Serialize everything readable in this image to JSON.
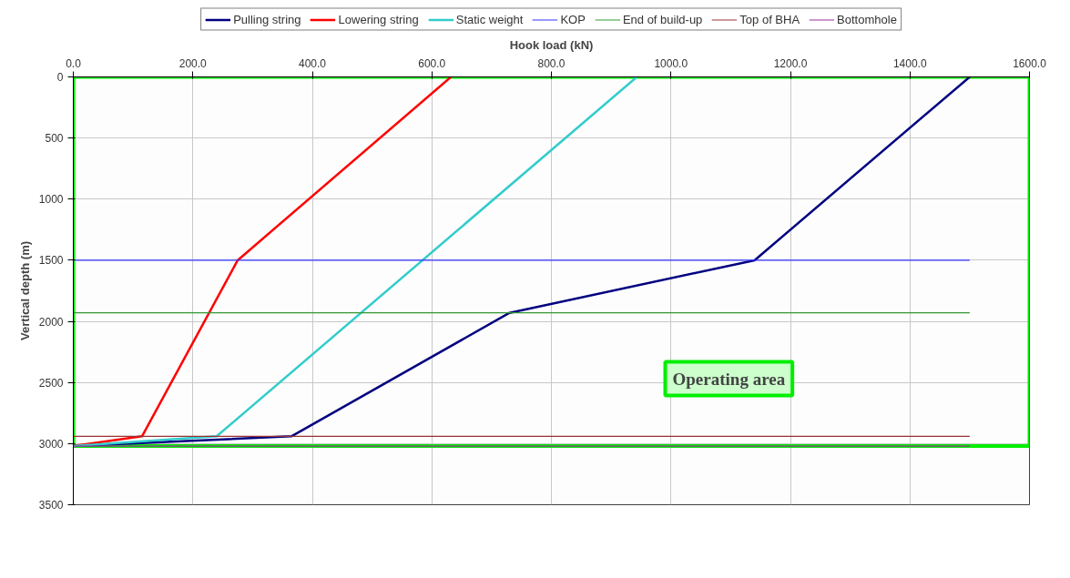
{
  "chart_data": {
    "type": "line",
    "xlabel": "Hook load (kN)",
    "ylabel": "Vertical depth (m)",
    "xlim": [
      0,
      1600
    ],
    "xticks": [
      {
        "value": 0,
        "label": "0.0"
      },
      {
        "value": 200,
        "label": "200.0"
      },
      {
        "value": 400,
        "label": "400.0"
      },
      {
        "value": 600,
        "label": "600.0"
      },
      {
        "value": 800,
        "label": "800.0"
      },
      {
        "value": 1000,
        "label": "1000.0"
      },
      {
        "value": 1200,
        "label": "1200.0"
      },
      {
        "value": 1400,
        "label": "1400.0"
      },
      {
        "value": 1600,
        "label": "1600.0"
      }
    ],
    "ylim": [
      3500,
      0
    ],
    "yticks": [
      0,
      500,
      1000,
      1500,
      2000,
      2500,
      3000,
      3500
    ],
    "series": [
      {
        "name": "Pulling string",
        "color": "#000080",
        "x": [
          1500,
          1140,
          730,
          365,
          0
        ],
        "values": [
          0,
          1500,
          1930,
          2940,
          3020
        ]
      },
      {
        "name": "Lowering string",
        "color": "#ff0000",
        "x": [
          632,
          275,
          115,
          0
        ],
        "values": [
          0,
          1500,
          2940,
          3020
        ]
      },
      {
        "name": "Static weight",
        "color": "#33cccc",
        "x": [
          943,
          240,
          0
        ],
        "values": [
          0,
          2940,
          3020
        ]
      }
    ],
    "ref_lines": [
      {
        "axis": "y",
        "value": 1500,
        "label": "KOP",
        "color": "#3333ff"
      },
      {
        "axis": "y",
        "value": 1930,
        "label": "End of build-up",
        "color": "#339933"
      },
      {
        "axis": "y",
        "value": 2940,
        "label": "Top of BHA",
        "color": "#993333"
      },
      {
        "axis": "y",
        "value": 3020,
        "label": "Bottomhole",
        "color": "#993399"
      }
    ],
    "annotations": [
      "Operating area"
    ],
    "grid": true,
    "legend": "top",
    "marker": "none",
    "line_style": "solid"
  }
}
